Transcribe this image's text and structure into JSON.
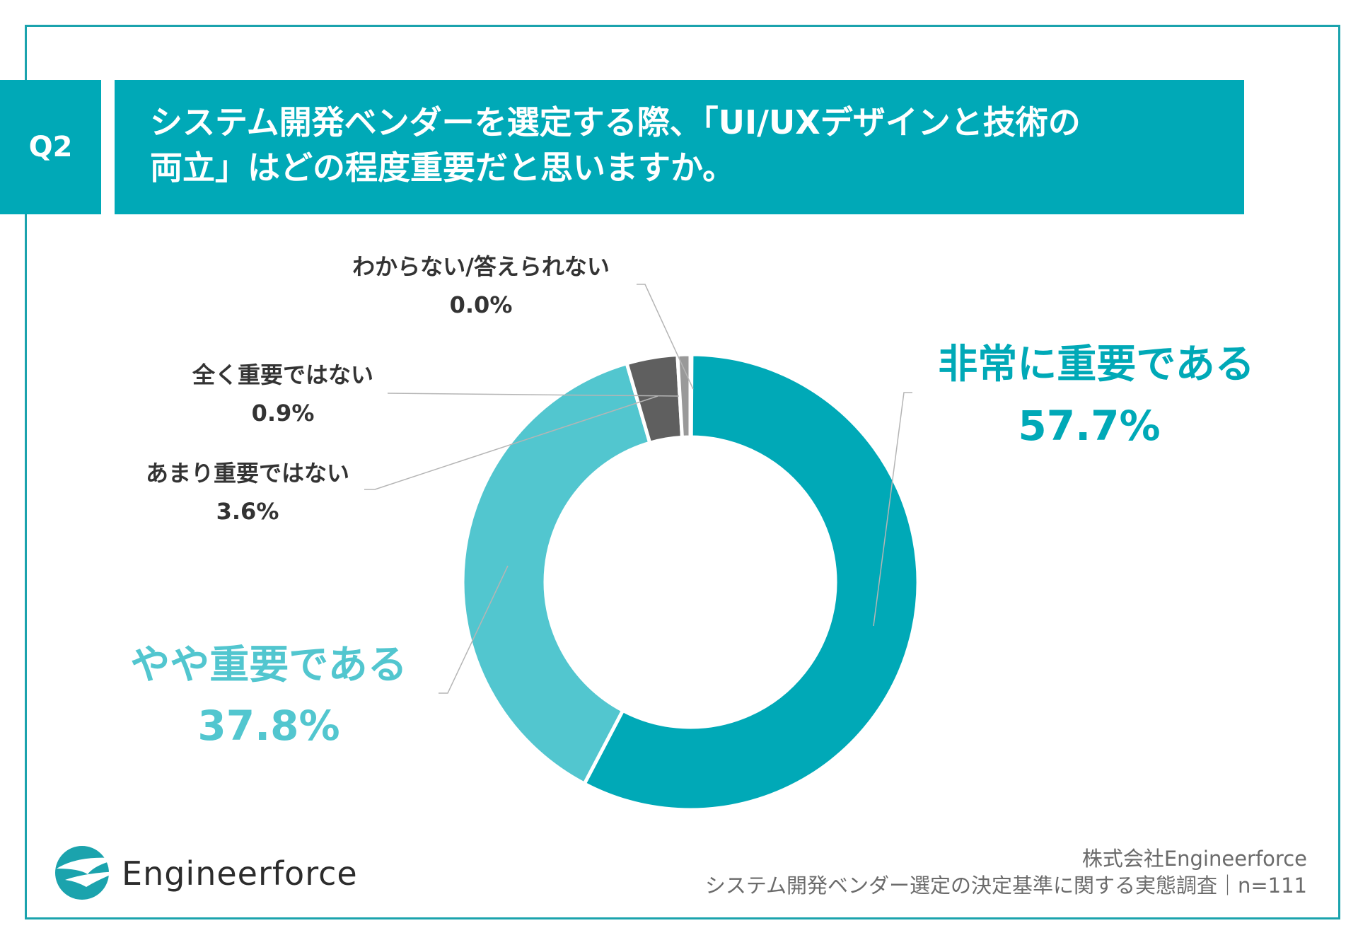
{
  "question": {
    "tag": "Q2",
    "text": "システム開発ベンダーを選定する際、「UI/UXデザインと技術の\n両立」はどの程度重要だと思いますか。"
  },
  "chart_data": {
    "type": "pie",
    "style": "donut",
    "categories": [
      "非常に重要である",
      "やや重要である",
      "あまり重要ではない",
      "全く重要ではない",
      "わからない/答えられない"
    ],
    "values": [
      57.7,
      37.8,
      3.6,
      0.9,
      0.0
    ],
    "labels": [
      "57.7%",
      "37.8%",
      "3.6%",
      "0.9%",
      "0.0%"
    ],
    "colors": [
      "#00a9b7",
      "#52c6cf",
      "#5f5f5f",
      "#999999",
      "#bbbbbb"
    ]
  },
  "footer": {
    "brand": "Engineerforce",
    "company": "株式会社Engineerforce",
    "survey": "システム開発ベンダー選定の決定基準に関する実態調査｜n=111"
  }
}
